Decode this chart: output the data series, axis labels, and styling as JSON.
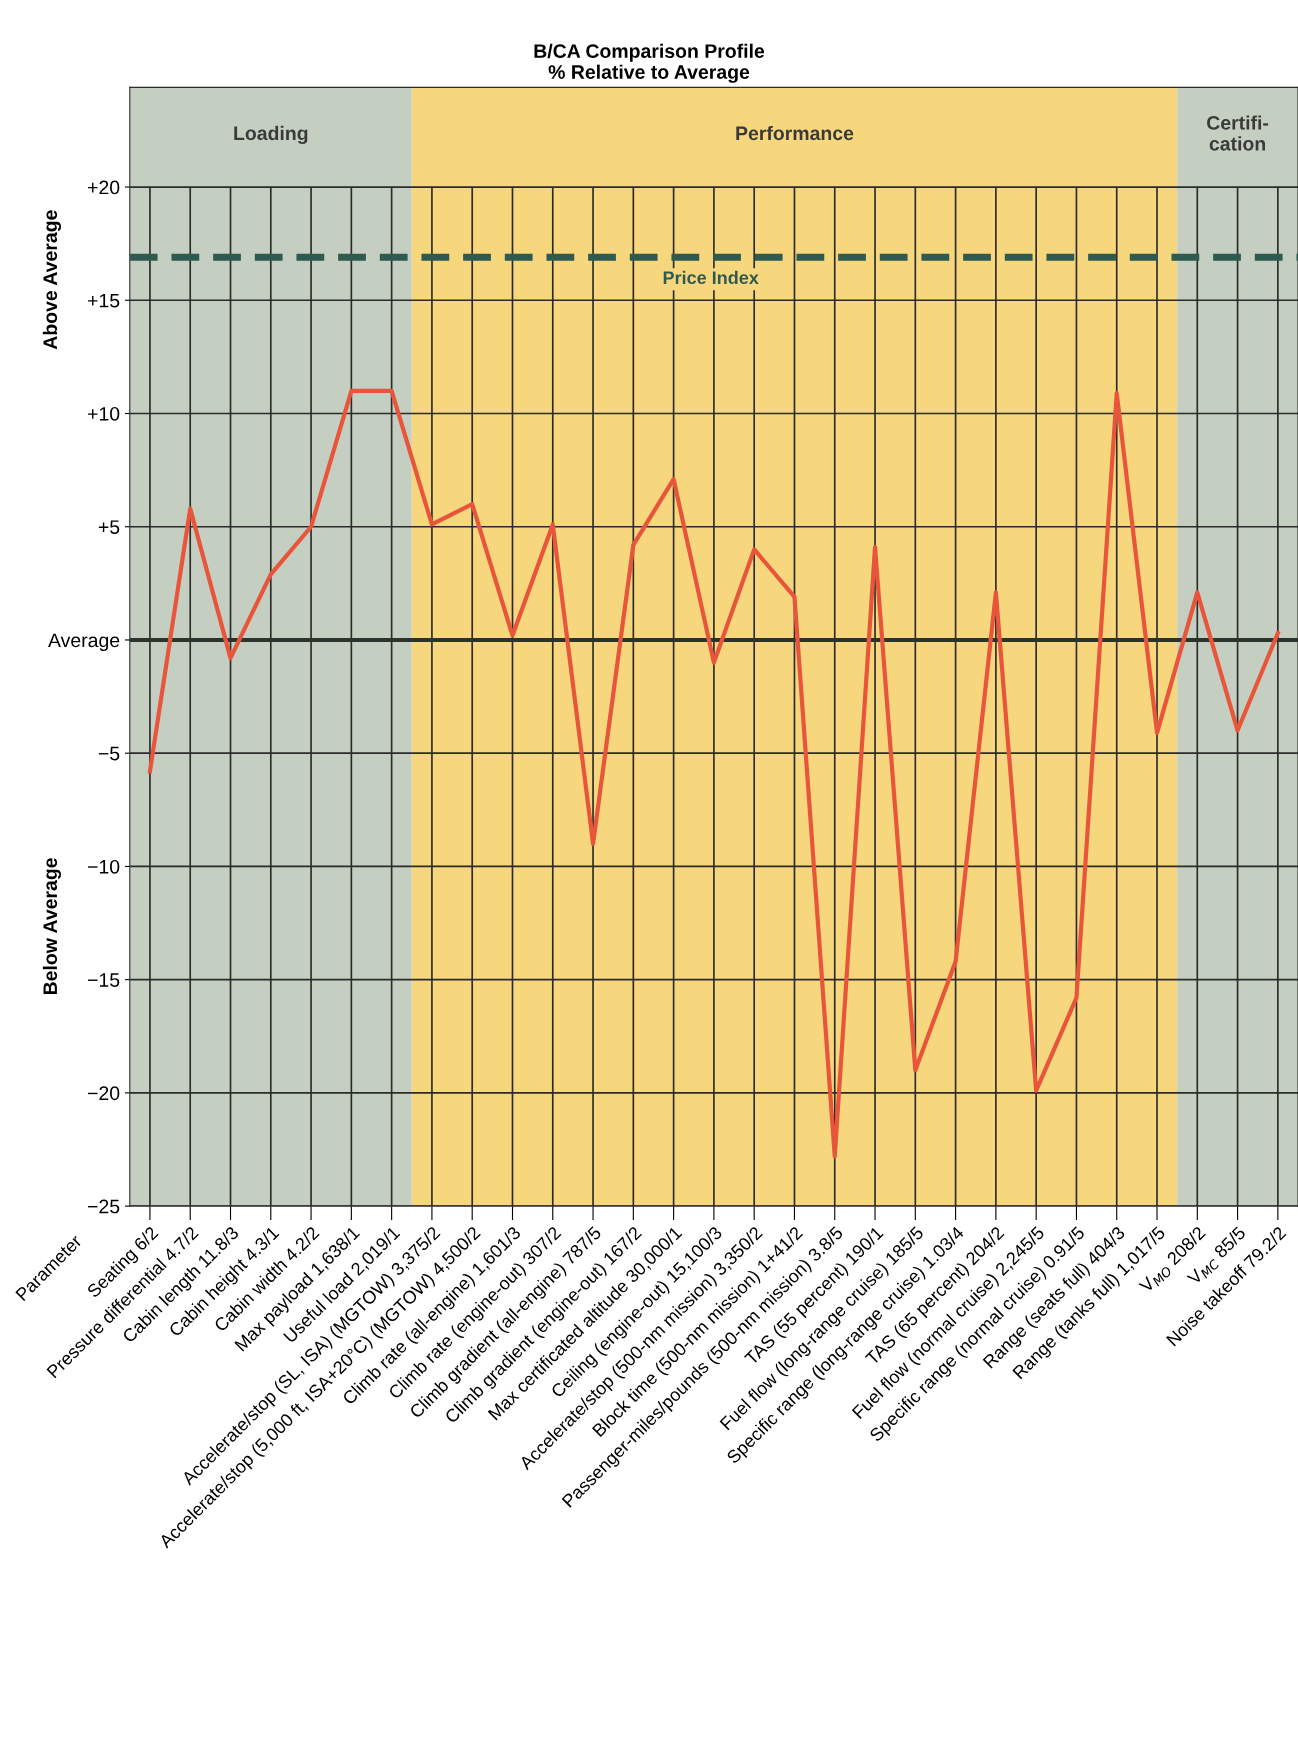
{
  "chart_data": {
    "type": "line",
    "title": "B/CA Comparison Profile\n% Relative to Average",
    "xlabel": "Parameter",
    "categories": [
      "Seating 6/2",
      "Pressure differential 4.7/2",
      "Cabin length 11.8/3",
      "Cabin height 4.3/1",
      "Cabin width 4.2/2",
      "Max payload 1,638/1",
      "Useful load 2,019/1",
      "Accelerate/stop (SL, ISA) (MGTOW) 3,375/2",
      "Accelerate/stop (5,000 ft, ISA+20°C) (MGTOW) 4,500/2",
      "Climb rate (all-engine) 1,601/3",
      "Climb rate (engine-out) 307/2",
      "Climb gradient (all-engine) 787/5",
      "Climb gradient (engine-out) 167/2",
      "Max certificated altitude 30,000/1",
      "Ceiling (engine-out) 15,100/3",
      "Accelerate/stop (500-nm mission) 3,350/2",
      "Block time (500-nm mission) 1+41/2",
      "Passenger-miles/pounds (500-nm mission) 3.8/5",
      "TAS (55 percent) 190/1",
      "Fuel flow (long-range cruise) 185/5",
      "Specific range (long-range cruise) 1.03/4",
      "TAS (65 percent) 204/2",
      "Fuel flow (normal cruise) 2,245/5",
      "Specific range (normal cruise) 0.91/5",
      "Range (seats full) 404/3",
      "Range (tanks full) 1,017/5",
      "V$_{MO}$ 208/2",
      "V$_{MC}$ 85/5",
      "Noise takeoff 79.2/2"
    ],
    "series": [
      {
        "color": "#e8553a",
        "values": [
          -5.8,
          5.8,
          -0.8,
          2.9,
          5.0,
          11.0,
          11.0,
          5.1,
          6.0,
          0.2,
          5.1,
          -9.0,
          4.2,
          7.1,
          -1.0,
          4.0,
          1.9,
          -22.8,
          4.1,
          -19.0,
          -14.2,
          2.1,
          -19.9,
          -15.8,
          10.9,
          -4.1,
          2.1,
          -4.0,
          0.3
        ]
      }
    ],
    "ylim": [
      -25,
      24.4
    ],
    "yticks": [
      {
        "value": -25,
        "label": "−25"
      },
      {
        "value": -20,
        "label": "−20"
      },
      {
        "value": -15,
        "label": "−15"
      },
      {
        "value": -10,
        "label": "−10"
      },
      {
        "value": -5,
        "label": "−5"
      },
      {
        "value": 0,
        "label": "Average"
      },
      {
        "value": 5,
        "label": "+5"
      },
      {
        "value": 10,
        "label": "+10"
      },
      {
        "value": 15,
        "label": "+15"
      },
      {
        "value": 20,
        "label": "+20"
      }
    ],
    "ref_lines": [
      {
        "axis": "y",
        "value": 16.9,
        "label": "Price Index",
        "color": "#2e5a50",
        "line_style": "dashed"
      },
      {
        "axis": "y",
        "value": 0,
        "color": "#2b332d",
        "line_style": "solid"
      }
    ],
    "bands": [
      {
        "axis": "x",
        "from": "Seating 6/2",
        "to": "Useful load 2,019/1",
        "label": "Loading",
        "color": "#c5cfc1"
      },
      {
        "axis": "x",
        "from": "Accelerate/stop (SL, ISA) (MGTOW) 3,375/2",
        "to": "Range (tanks full) 1,017/5",
        "label": "Performance",
        "color": "#f6d77e"
      },
      {
        "axis": "x",
        "from": "V$_{MO}$ 208/2",
        "to": "Noise takeoff 79.2/2",
        "label": "Certifi-\ncation",
        "color": "#c5cfc1"
      }
    ],
    "annotations": [
      "Above Average",
      "Below Average"
    ],
    "grid": true,
    "legend": false,
    "marker": "none",
    "line_style": "solid"
  }
}
